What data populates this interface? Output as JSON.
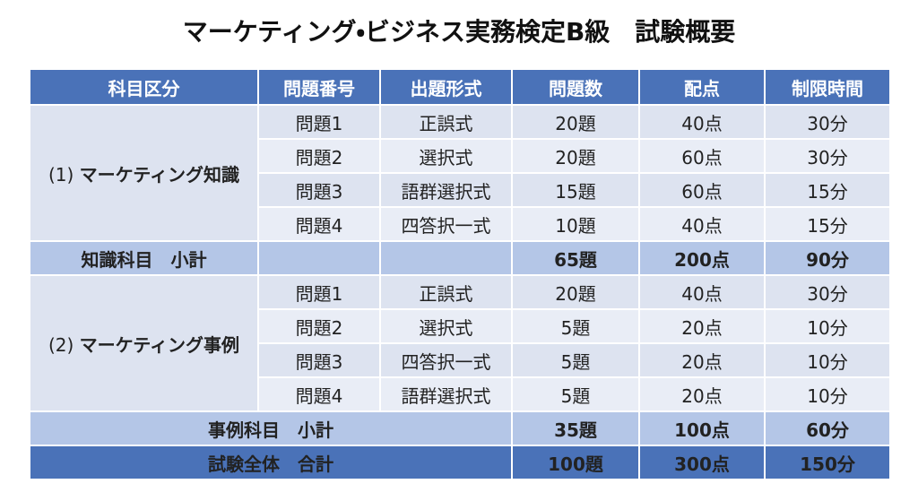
{
  "header": {
    "title": "マーケティング・ビジネス実務検定B級　試験概要"
  },
  "table": {
    "columns": [
      "科目区分",
      "問題番号",
      "出題形式",
      "問題数",
      "配点",
      "制限時間"
    ],
    "groups": [
      {
        "number": "(1)",
        "name": "マーケティング知識",
        "rows": [
          [
            "問題1",
            "正誤式",
            "20題",
            "40点",
            "30分"
          ],
          [
            "問題2",
            "選択式",
            "20題",
            "60点",
            "30分"
          ],
          [
            "問題3",
            "語群選択式",
            "15題",
            "60点",
            "15分"
          ],
          [
            "問題4",
            "四答択一式",
            "10題",
            "40点",
            "15分"
          ]
        ],
        "subtotal": {
          "label": "知識科目　小計",
          "values": [
            "65題",
            "200点",
            "90分"
          ]
        }
      },
      {
        "number": "(2)",
        "name": "マーケティング事例",
        "rows": [
          [
            "問題1",
            "正誤式",
            "20題",
            "40点",
            "30分"
          ],
          [
            "問題2",
            "選択式",
            "5題",
            "20点",
            "10分"
          ],
          [
            "問題3",
            "四答択一式",
            "5題",
            "20点",
            "10分"
          ],
          [
            "問題4",
            "語群選択式",
            "5題",
            "20点",
            "10分"
          ]
        ],
        "subtotal": {
          "label": "事例科目　小計",
          "values": [
            "35題",
            "100点",
            "60分"
          ]
        }
      }
    ],
    "total": {
      "label": "試験全体　合計",
      "values": [
        "100題",
        "300点",
        "150分"
      ]
    }
  }
}
